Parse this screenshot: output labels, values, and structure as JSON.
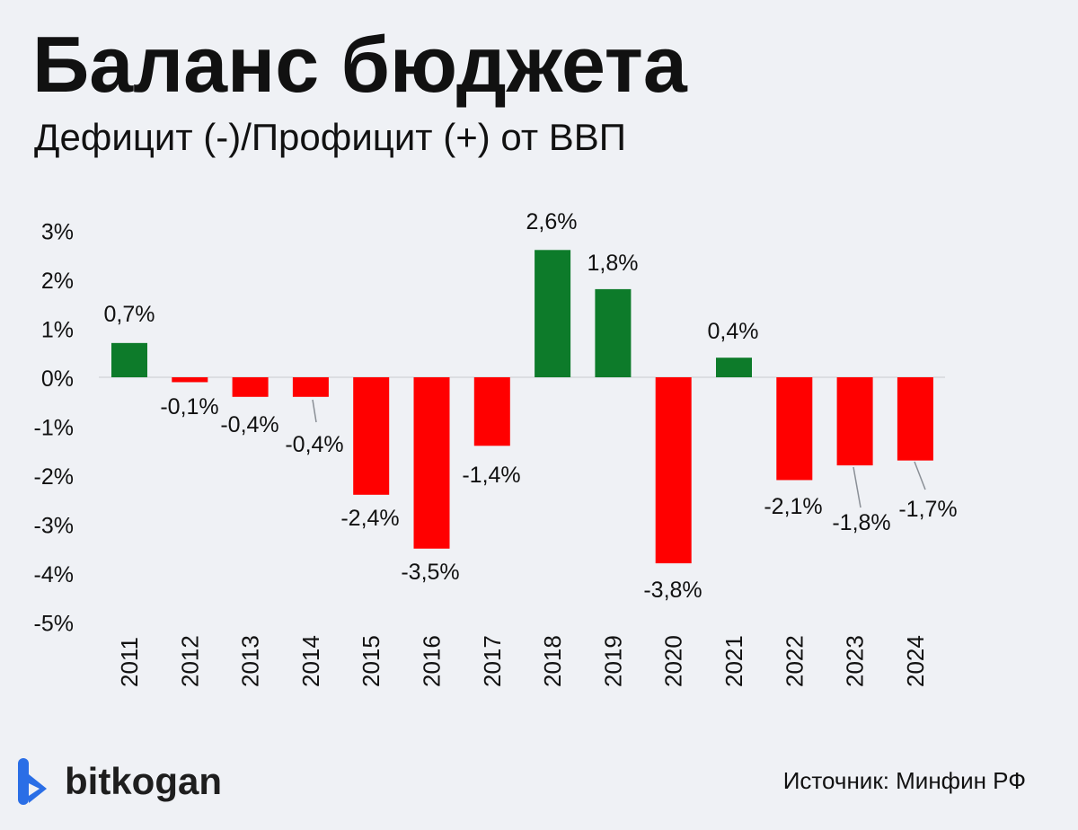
{
  "header": {
    "title": "Баланс бюджета",
    "subtitle": "Дефицит (-)/Профицит (+) от ВВП"
  },
  "colors": {
    "positive": "#0d7b2a",
    "negative": "#ff0000",
    "text": "#111111",
    "background": "#eff1f5",
    "logo_blue": "#2a6ee6"
  },
  "chart_data": {
    "type": "bar",
    "title": "Баланс бюджета",
    "subtitle": "Дефицит (-)/Профицит (+) от ВВП",
    "categories": [
      "2011",
      "2012",
      "2013",
      "2014",
      "2015",
      "2016",
      "2017",
      "2018",
      "2019",
      "2020",
      "2021",
      "2022",
      "2023",
      "2024"
    ],
    "values": [
      0.7,
      -0.1,
      -0.4,
      -0.4,
      -2.4,
      -3.5,
      -1.4,
      2.6,
      1.8,
      -3.8,
      0.4,
      -2.1,
      -1.8,
      -1.7
    ],
    "data_labels": [
      "0,7%",
      "-0,1%",
      "-0,4%",
      "-0,4%",
      "-2,4%",
      "-3,5%",
      "-1,4%",
      "2,6%",
      "1,8%",
      "-3,8%",
      "0,4%",
      "-2,1%",
      "-1,8%",
      "-1,7%"
    ],
    "yticks": [
      3,
      2,
      1,
      0,
      -1,
      -2,
      -3,
      -4,
      -5
    ],
    "ytick_labels": [
      "3%",
      "2%",
      "1%",
      "0%",
      "-1%",
      "-2%",
      "-3%",
      "-4%",
      "-5%"
    ],
    "ylim": [
      -5,
      3
    ],
    "xlabel": "",
    "ylabel": "",
    "grid": false,
    "legend": "none"
  },
  "footer": {
    "brand": "bitkogan",
    "source": "Источник: Минфин РФ"
  }
}
